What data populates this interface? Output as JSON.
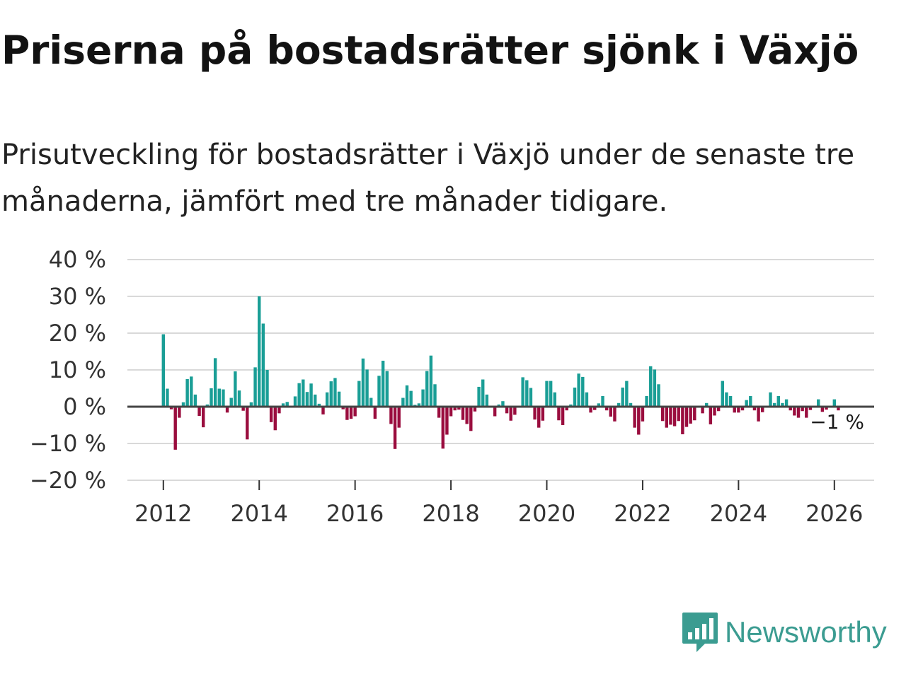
{
  "title": "Priserna på bostadsrätter sjönk i Växjö",
  "subtitle": "Prisutveckling för bostadsrätter i Växjö under de senaste tre månaderna, jämfört med tre månader tidigare.",
  "brand": {
    "name": "Newsworthy",
    "icon": "newsworthy-logo-icon"
  },
  "colors": {
    "positive": "#1a9e96",
    "negative": "#9a0d3e",
    "grid": "#d9d9d9",
    "zero": "#444444",
    "brand": "#3b9c91"
  },
  "chart_data": {
    "type": "bar",
    "title": "Priserna på bostadsrätter sjönk i Växjö",
    "ylabel": "",
    "xlabel": "",
    "ylim": [
      -20,
      40
    ],
    "y_ticks": [
      40,
      30,
      20,
      10,
      0,
      -10,
      -20
    ],
    "y_tick_labels": [
      "40 %",
      "30 %",
      "20 %",
      "10 %",
      "0 %",
      "−10 %",
      "−20 %"
    ],
    "x_ticks": [
      2012,
      2014,
      2016,
      2018,
      2020,
      2022,
      2024,
      2026
    ],
    "x_tick_labels": [
      "2012",
      "2014",
      "2016",
      "2018",
      "2020",
      "2022",
      "2024",
      "2026"
    ],
    "xlim": [
      2011.25,
      2026.83
    ],
    "start": [
      2012,
      1
    ],
    "frequency": "monthly",
    "last_value_label": "−1 %",
    "values": [
      19.7,
      4.9,
      -0.7,
      -11.7,
      -3.0,
      1.2,
      7.5,
      8.2,
      3.3,
      -2.5,
      -5.6,
      0.6,
      5.0,
      13.2,
      4.9,
      4.7,
      -1.6,
      2.4,
      9.6,
      4.4,
      -1.1,
      -8.9,
      1.2,
      10.7,
      30.0,
      22.6,
      10.0,
      -4.2,
      -6.4,
      -1.8,
      0.9,
      1.3,
      0.0,
      2.8,
      6.4,
      7.4,
      4.0,
      6.3,
      3.3,
      0.8,
      -2.1,
      3.9,
      6.9,
      7.8,
      4.1,
      -0.7,
      -3.6,
      -3.3,
      -2.6,
      7.0,
      13.1,
      10.1,
      2.4,
      -3.3,
      8.4,
      12.5,
      9.7,
      -4.7,
      -11.5,
      -5.7,
      2.4,
      5.8,
      4.3,
      0.5,
      0.9,
      4.7,
      9.7,
      13.9,
      6.1,
      -3.0,
      -11.4,
      -7.6,
      -2.6,
      -1.0,
      -0.8,
      -3.6,
      -4.7,
      -6.6,
      -1.3,
      5.4,
      7.4,
      3.3,
      0.0,
      -2.6,
      0.6,
      1.5,
      -1.8,
      -3.8,
      -2.2,
      0.0,
      8.0,
      7.2,
      5.1,
      -3.5,
      -5.7,
      -3.8,
      7.0,
      7.0,
      3.9,
      -3.7,
      -5.0,
      -1.0,
      0.6,
      5.2,
      9.0,
      8.1,
      3.9,
      -1.6,
      -0.9,
      0.9,
      2.9,
      -1.0,
      -2.7,
      -4.0,
      1.0,
      5.2,
      7.0,
      1.0,
      -5.7,
      -7.6,
      -4.0,
      2.9,
      11.0,
      10.1,
      6.1,
      -3.9,
      -5.7,
      -4.9,
      -5.3,
      -3.9,
      -7.5,
      -5.5,
      -4.6,
      -3.7,
      0.0,
      -1.8,
      1.0,
      -4.8,
      -2.4,
      -1.2,
      7.0,
      3.9,
      2.9,
      -1.6,
      -1.6,
      -1.0,
      1.8,
      2.9,
      -1.0,
      -4.0,
      -1.5,
      0.0,
      3.9,
      1.0,
      2.9,
      1.0,
      2.0,
      -1.0,
      -2.4,
      -3.0,
      -1.2,
      -3.0,
      -0.9,
      0.0,
      2.0,
      -1.4,
      -0.8,
      0.0,
      2.0,
      -1.0
    ]
  }
}
